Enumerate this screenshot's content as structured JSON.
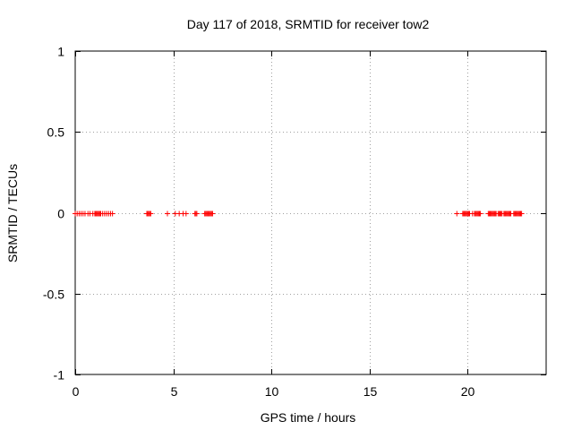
{
  "chart_data": {
    "type": "scatter",
    "title": "Day 117 of 2018, SRMTID for receiver tow2",
    "xlabel": "GPS time / hours",
    "ylabel": "SRMTID / TECUs",
    "xlim": [
      0,
      24
    ],
    "ylim": [
      -1,
      1
    ],
    "xticks": [
      0,
      5,
      10,
      15,
      20
    ],
    "xtick_labels": [
      "0",
      "5",
      "10",
      "15",
      "20"
    ],
    "yticks": [
      1,
      0.5,
      0,
      -0.5,
      -1
    ],
    "ytick_labels": [
      "1",
      "0.5",
      "0",
      "-0.5",
      "-1"
    ],
    "grid": true,
    "marker": "+",
    "series": [
      {
        "name": "SRMTID",
        "color": "#ff0000",
        "x": [
          0.0,
          0.1,
          0.2,
          0.3,
          0.4,
          0.5,
          0.65,
          0.75,
          0.9,
          1.0,
          1.05,
          1.1,
          1.15,
          1.2,
          1.25,
          1.3,
          1.4,
          1.5,
          1.6,
          1.7,
          1.8,
          1.9,
          3.65,
          3.7,
          3.75,
          3.8,
          3.85,
          4.7,
          5.1,
          5.3,
          5.5,
          5.65,
          6.1,
          6.15,
          6.2,
          6.6,
          6.65,
          6.7,
          6.75,
          6.8,
          6.85,
          6.9,
          6.95,
          7.0,
          19.45,
          19.75,
          19.8,
          19.85,
          19.9,
          19.95,
          20.0,
          20.05,
          20.1,
          20.25,
          20.35,
          20.4,
          20.45,
          20.5,
          20.55,
          20.6,
          20.65,
          21.05,
          21.1,
          21.15,
          21.2,
          21.25,
          21.3,
          21.35,
          21.4,
          21.45,
          21.55,
          21.6,
          21.65,
          21.7,
          21.75,
          21.85,
          21.9,
          21.95,
          22.0,
          22.05,
          22.1,
          22.15,
          22.2,
          22.35,
          22.4,
          22.45,
          22.5,
          22.55,
          22.6,
          22.65,
          22.7,
          22.75
        ],
        "y": [
          0,
          0,
          0,
          0,
          0,
          0,
          0,
          0,
          0,
          0,
          0,
          0,
          0,
          0,
          0,
          0,
          0,
          0,
          0,
          0,
          0,
          0,
          0,
          0,
          0,
          0,
          0,
          0,
          0,
          0,
          0,
          0,
          0,
          0,
          0,
          0,
          0,
          0,
          0,
          0,
          0,
          0,
          0,
          0,
          0,
          0,
          0,
          0,
          0,
          0,
          0,
          0,
          0,
          0,
          0,
          0,
          0,
          0,
          0,
          0,
          0,
          0,
          0,
          0,
          0,
          0,
          0,
          0,
          0,
          0,
          0,
          0,
          0,
          0,
          0,
          0,
          0,
          0,
          0,
          0,
          0,
          0,
          0,
          0,
          0,
          0,
          0,
          0,
          0,
          0,
          0,
          0
        ]
      }
    ]
  }
}
